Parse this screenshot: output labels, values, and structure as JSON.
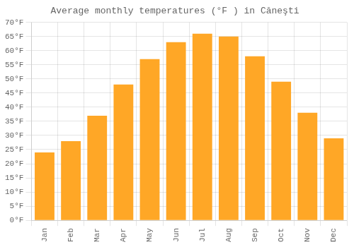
{
  "chart_data": {
    "type": "bar",
    "title": "Average monthly temperatures (°F ) in Căneşti",
    "categories": [
      "Jan",
      "Feb",
      "Mar",
      "Apr",
      "May",
      "Jun",
      "Jul",
      "Aug",
      "Sep",
      "Oct",
      "Nov",
      "Dec"
    ],
    "values": [
      24,
      28,
      37,
      48,
      57,
      63,
      66,
      65,
      58,
      49,
      38,
      29
    ],
    "color": "#FFA726",
    "ylim": [
      0,
      70
    ],
    "yticks": [
      {
        "value": 0,
        "label": "0°F"
      },
      {
        "value": 5,
        "label": "5°F"
      },
      {
        "value": 10,
        "label": "10°F"
      },
      {
        "value": 15,
        "label": "15°F"
      },
      {
        "value": 20,
        "label": "20°F"
      },
      {
        "value": 25,
        "label": "25°F"
      },
      {
        "value": 30,
        "label": "30°F"
      },
      {
        "value": 35,
        "label": "35°F"
      },
      {
        "value": 40,
        "label": "40°F"
      },
      {
        "value": 45,
        "label": "45°F"
      },
      {
        "value": 50,
        "label": "50°F"
      },
      {
        "value": 55,
        "label": "55°F"
      },
      {
        "value": 60,
        "label": "60°F"
      },
      {
        "value": 65,
        "label": "65°F"
      },
      {
        "value": 70,
        "label": "70°F"
      }
    ],
    "grid": true
  }
}
